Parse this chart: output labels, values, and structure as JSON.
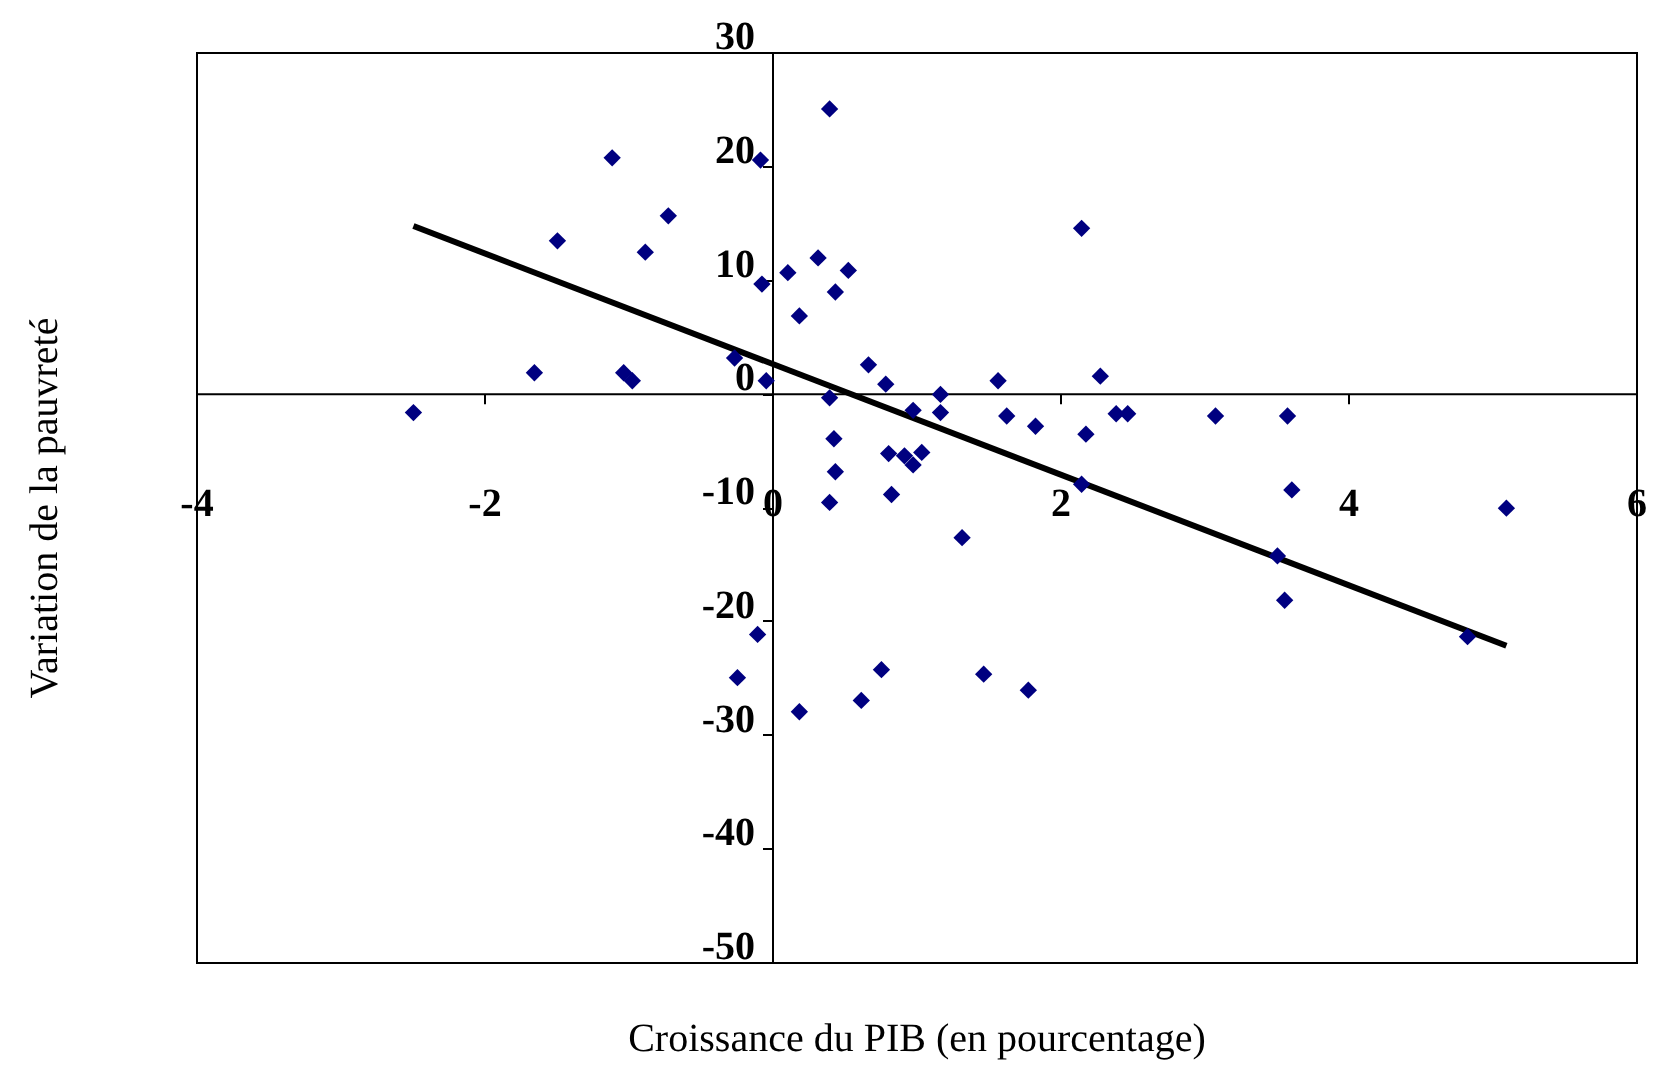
{
  "chart_data": {
    "type": "scatter",
    "xlabel": "Croissance du PIB (en pourcentage)",
    "ylabel": "Variation de la pauvreté",
    "xlim": [
      -4,
      6
    ],
    "xticks": [
      -4,
      -2,
      0,
      2,
      4,
      6
    ],
    "ylim": [
      -50,
      30
    ],
    "yticks": [
      -50,
      -40,
      -30,
      -20,
      -10,
      0,
      10,
      20,
      30
    ],
    "marker": "diamond",
    "series": [
      {
        "type": "scatter",
        "color": "#000080",
        "x": [
          -2.49,
          -1.65,
          -1.49,
          -1.11,
          -1.03,
          -0.97,
          -0.88,
          -0.72,
          -0.26,
          -0.24,
          -0.08,
          -0.07,
          -0.04,
          -0.1,
          0.11,
          0.19,
          0.32,
          0.4,
          0.4,
          0.44,
          0.53,
          0.43,
          0.44,
          0.4,
          0.19,
          0.67,
          0.79,
          0.81,
          0.92,
          0.98,
          1.04,
          0.98,
          1.17,
          1.17,
          0.83,
          1.32,
          0.62,
          0.76,
          1.47,
          1.78,
          1.57,
          1.63,
          1.83,
          2.15,
          2.28,
          2.18,
          2.15,
          2.39,
          2.47,
          3.08,
          3.58,
          3.61,
          3.51,
          3.56,
          4.83,
          5.1
        ],
        "values": [
          -1.7,
          1.8,
          13.4,
          20.7,
          1.8,
          1.1,
          12.4,
          15.6,
          3.1,
          -25.0,
          20.5,
          9.6,
          1.1,
          -21.2,
          10.6,
          6.8,
          11.9,
          25.0,
          -0.4,
          8.9,
          10.8,
          -4.0,
          -6.9,
          -9.6,
          -28.0,
          2.5,
          0.8,
          -5.3,
          -5.5,
          -6.3,
          -5.2,
          -1.5,
          -0.1,
          -1.7,
          -8.9,
          -12.7,
          -27.0,
          -24.3,
          -24.7,
          -26.1,
          1.1,
          -2.0,
          -2.9,
          14.5,
          1.5,
          -3.6,
          -8.0,
          -1.8,
          -1.8,
          -2.0,
          -2.0,
          -8.5,
          -14.3,
          -18.2,
          -21.4,
          -10.1
        ]
      },
      {
        "type": "line",
        "color": "#000000",
        "marker": "none",
        "line_style": "solid",
        "x": [
          -2.49,
          5.1
        ],
        "values": [
          14.7,
          -22.2
        ]
      }
    ]
  }
}
